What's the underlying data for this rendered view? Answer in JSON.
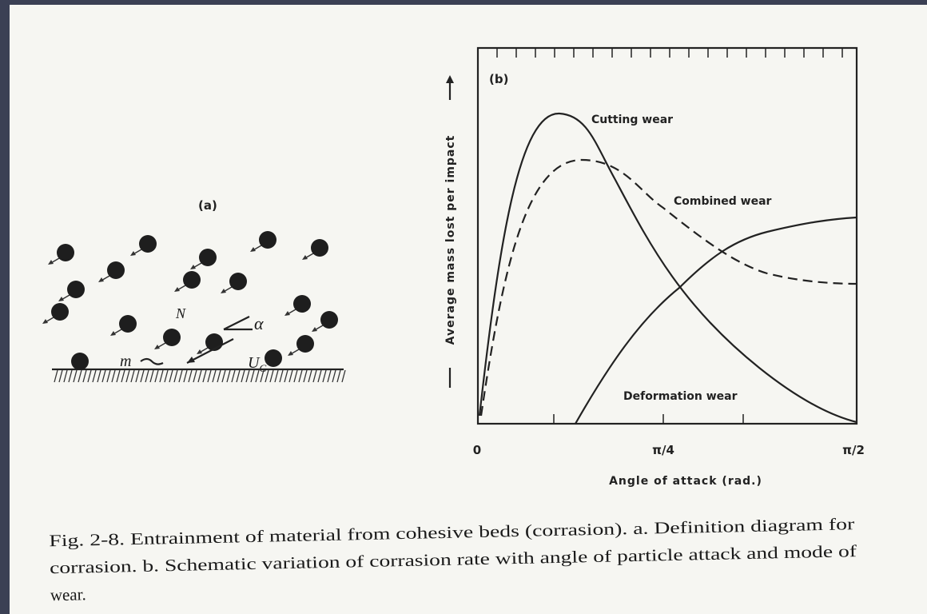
{
  "panel_a": {
    "label": "(a)",
    "symbols": {
      "normal": "N",
      "angle": "α",
      "mass": "m",
      "velocity": "U",
      "velocity_subscript": "G"
    }
  },
  "panel_b": {
    "label": "(b)",
    "y_axis_label": "Average mass lost per impact",
    "x_axis_label": "Angle of attack (rad.)",
    "x_ticks": [
      "0",
      "π/4",
      "π/2"
    ],
    "curves": {
      "cutting": "Cutting wear",
      "combined": "Combined wear",
      "deformation": "Deformation wear"
    }
  },
  "caption": {
    "lines": [
      "Fig. 2-8. Entrainment of material from cohesive beds (corrasion). a. Definition diagram for",
      "corrasion. b. Schematic variation of corrasion rate with angle of particle attack and mode of",
      "wear."
    ]
  }
}
